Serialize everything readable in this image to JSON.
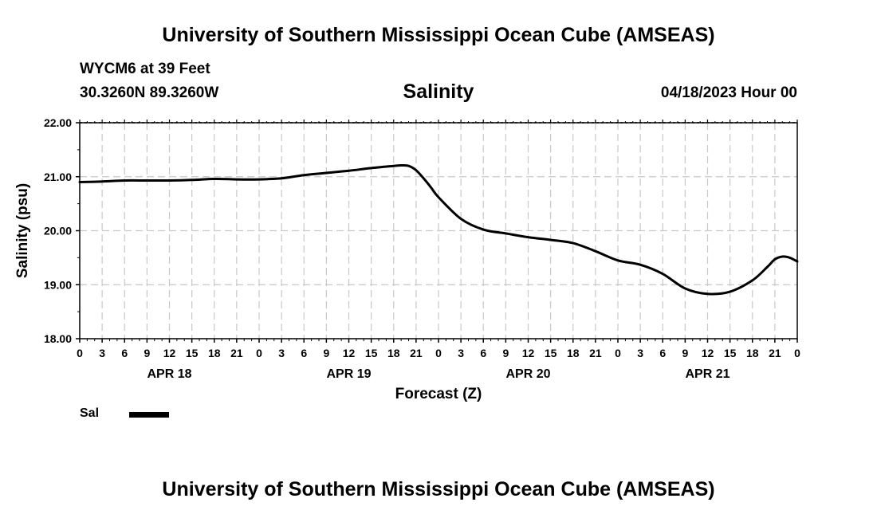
{
  "header": {
    "title": "University of Southern Mississippi Ocean Cube (AMSEAS)",
    "station": "WYCM6 at 39 Feet",
    "coordinates": "30.3260N  89.3260W",
    "variable": "Salinity",
    "datetime": "04/18/2023 Hour 00"
  },
  "footer": {
    "title": "University of Southern Mississippi Ocean Cube (AMSEAS)"
  },
  "legend": {
    "label": "Sal",
    "color": "#000000"
  },
  "chart_data": {
    "type": "line",
    "title": "Salinity",
    "xlabel": "Forecast (Z)",
    "ylabel": "Salinity (psu)",
    "ylim": [
      18.0,
      22.0
    ],
    "y_ticks": [
      "18.00",
      "19.00",
      "20.00",
      "21.00",
      "22.00"
    ],
    "xlim": [
      0,
      96
    ],
    "x_tick_labels": [
      "0",
      "3",
      "6",
      "9",
      "12",
      "15",
      "18",
      "21",
      "0",
      "3",
      "6",
      "9",
      "12",
      "15",
      "18",
      "21",
      "0",
      "3",
      "6",
      "9",
      "12",
      "15",
      "18",
      "21",
      "0",
      "3",
      "6",
      "9",
      "12",
      "15",
      "18",
      "21",
      "0"
    ],
    "day_labels": [
      {
        "label": "APR 18",
        "hour": 12
      },
      {
        "label": "APR 19",
        "hour": 36
      },
      {
        "label": "APR 20",
        "hour": 60
      },
      {
        "label": "APR 21",
        "hour": 84
      }
    ],
    "grid": true,
    "series": [
      {
        "name": "Sal",
        "x": [
          0,
          3,
          6,
          9,
          12,
          15,
          18,
          21,
          24,
          27,
          30,
          33,
          36,
          39,
          42,
          43,
          44,
          45,
          46,
          47,
          48,
          51,
          54,
          57,
          60,
          63,
          66,
          69,
          72,
          75,
          78,
          81,
          84,
          87,
          90,
          92,
          93,
          94,
          95,
          96
        ],
        "values": [
          20.9,
          20.91,
          20.93,
          20.93,
          20.93,
          20.94,
          20.96,
          20.95,
          20.95,
          20.97,
          21.03,
          21.07,
          21.11,
          21.16,
          21.2,
          21.21,
          21.2,
          21.12,
          20.97,
          20.8,
          20.62,
          20.22,
          20.02,
          19.95,
          19.88,
          19.83,
          19.77,
          19.62,
          19.45,
          19.37,
          19.2,
          18.93,
          18.83,
          18.87,
          19.08,
          19.33,
          19.47,
          19.52,
          19.5,
          19.43
        ],
        "color": "#000000"
      }
    ]
  }
}
